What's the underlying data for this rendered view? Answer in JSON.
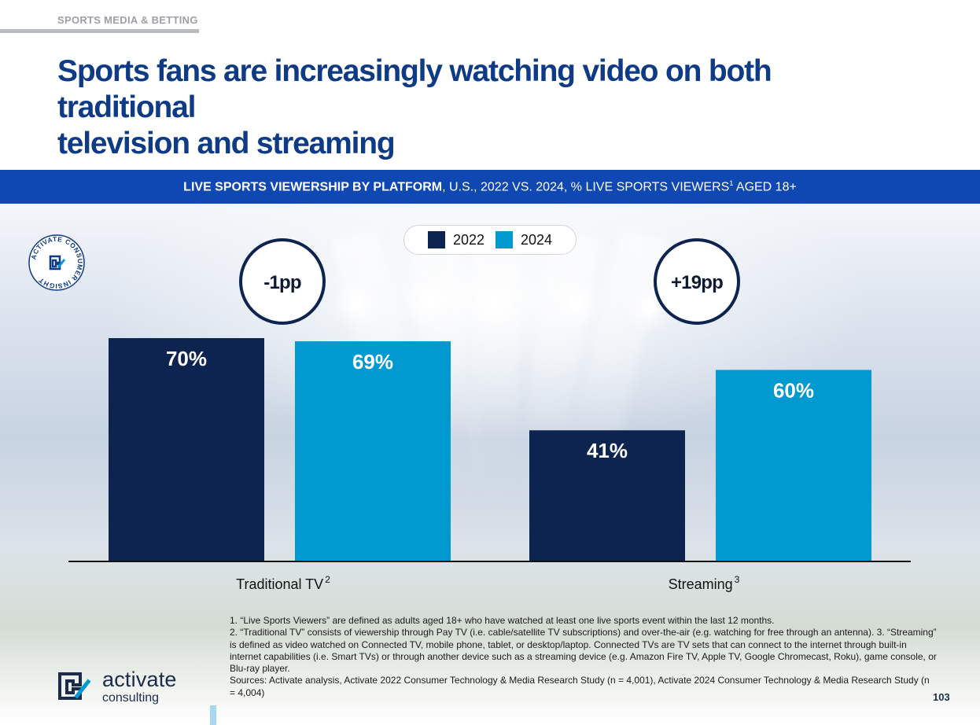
{
  "section_tag": "SPORTS MEDIA & BETTING",
  "headline_line1": "Sports fans are increasingly watching video on both traditional",
  "headline_line2": "television and streaming",
  "banner": {
    "bold": "LIVE SPORTS VIEWERSHIP BY PLATFORM",
    "rest": ", U.S., 2022 VS. 2024, % LIVE SPORTS VIEWERS",
    "sup": "1",
    "tail": " AGED 18+"
  },
  "colors": {
    "banner": "#0f48b3",
    "headline": "#0e3a86",
    "series_2022": "#0d2450",
    "series_2024": "#0099d0"
  },
  "badge_logo_text": "ACTIVATE CONSUMER INSIGHT",
  "chart_data": {
    "type": "bar",
    "categories": [
      "Traditional TV",
      "Streaming"
    ],
    "category_superscripts": [
      "2",
      "3"
    ],
    "series": [
      {
        "name": "2022",
        "values": [
          70,
          41
        ],
        "labels": [
          "70%",
          "41%"
        ],
        "color": "#0d2450"
      },
      {
        "name": "2024",
        "values": [
          69,
          60
        ],
        "labels": [
          "69%",
          "60%"
        ],
        "color": "#0099d0"
      }
    ],
    "changes": [
      "-1pp",
      "+19pp"
    ],
    "ylim": [
      0,
      70
    ],
    "legend_position": "top-center",
    "grid": false
  },
  "footnotes": [
    "1. “Live Sports Viewers” are defined as adults aged 18+ who have watched at least one live sports event within the last 12 months.",
    "2. “Traditional TV” consists of viewership through Pay TV (i.e. cable/satellite TV subscriptions) and over-the-air (e.g. watching for free through an antenna).  3. “Streaming” is defined as video watched on Connected TV, mobile phone, tablet, or desktop/laptop. Connected TVs are TV sets that can connect to the internet through built-in internet capabilities (i.e. Smart TVs) or through another device such as a streaming device (e.g. Amazon Fire TV, Apple TV, Google Chromecast, Roku), game console, or Blu-ray player.",
    "Sources: Activate analysis, Activate 2022 Consumer Technology & Media Research Study (n = 4,001), Activate 2024 Consumer Technology & Media Research Study (n = 4,004)"
  ],
  "brand": {
    "name": "activate",
    "sub": "consulting",
    "icon": "activate-logo-icon"
  },
  "page_number": "103"
}
